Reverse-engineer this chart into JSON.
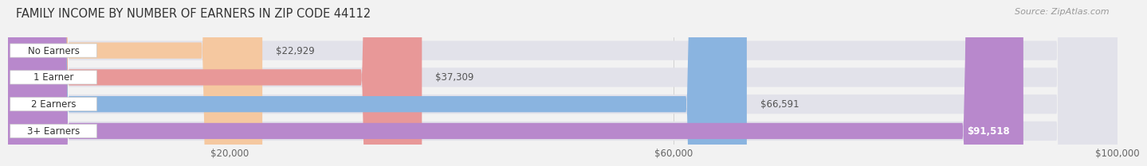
{
  "title": "FAMILY INCOME BY NUMBER OF EARNERS IN ZIP CODE 44112",
  "source": "Source: ZipAtlas.com",
  "categories": [
    "No Earners",
    "1 Earner",
    "2 Earners",
    "3+ Earners"
  ],
  "values": [
    22929,
    37309,
    66591,
    91518
  ],
  "bar_colors": [
    "#f5c8a0",
    "#e89898",
    "#8ab4e0",
    "#b888cc"
  ],
  "label_colors": [
    "#444444",
    "#444444",
    "#444444",
    "#ffffff"
  ],
  "value_labels": [
    "$22,929",
    "$37,309",
    "$66,591",
    "$91,518"
  ],
  "bg_color": "#f2f2f2",
  "bar_bg_color": "#e2e2ea",
  "xlim": [
    0,
    100000
  ],
  "xticks": [
    20000,
    60000,
    100000
  ],
  "xtick_labels": [
    "$20,000",
    "$60,000",
    "$100,000"
  ],
  "title_fontsize": 10.5,
  "label_fontsize": 8.5,
  "value_fontsize": 8.5,
  "source_fontsize": 8
}
